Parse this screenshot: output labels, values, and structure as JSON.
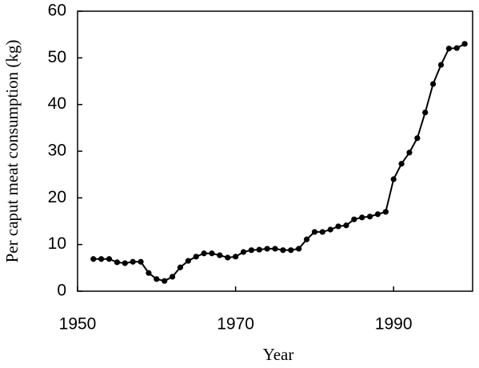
{
  "chart_data": {
    "type": "line",
    "xlabel": "Year",
    "ylabel": "Per caput meat consumption (kg)",
    "x": [
      1952,
      1953,
      1954,
      1955,
      1956,
      1957,
      1958,
      1959,
      1960,
      1961,
      1962,
      1963,
      1964,
      1965,
      1966,
      1967,
      1968,
      1969,
      1970,
      1971,
      1972,
      1973,
      1974,
      1975,
      1976,
      1977,
      1978,
      1979,
      1980,
      1981,
      1982,
      1983,
      1984,
      1985,
      1986,
      1987,
      1988,
      1989,
      1990,
      1991,
      1992,
      1993,
      1994,
      1995,
      1996,
      1997,
      1998,
      1999
    ],
    "series": [
      {
        "color": "#000000",
        "values": [
          6.9,
          6.9,
          6.9,
          6.2,
          6.0,
          6.3,
          6.3,
          3.9,
          2.6,
          2.2,
          3.1,
          5.1,
          6.5,
          7.4,
          8.1,
          8.1,
          7.7,
          7.2,
          7.4,
          8.4,
          8.8,
          8.9,
          9.1,
          9.1,
          8.8,
          8.8,
          9.1,
          11.1,
          12.7,
          12.7,
          13.2,
          13.9,
          14.1,
          15.4,
          15.8,
          16.0,
          16.5,
          17.0,
          24.0,
          27.3,
          29.7,
          32.8,
          38.3,
          44.4,
          48.5,
          52.0,
          52.1,
          53.0
        ]
      }
    ],
    "xlim": [
      1950,
      2000
    ],
    "xticks": [
      1950,
      1970,
      1990
    ],
    "ylim": [
      0,
      60
    ],
    "yticks": [
      0,
      10,
      20,
      30,
      40,
      50,
      60
    ]
  }
}
